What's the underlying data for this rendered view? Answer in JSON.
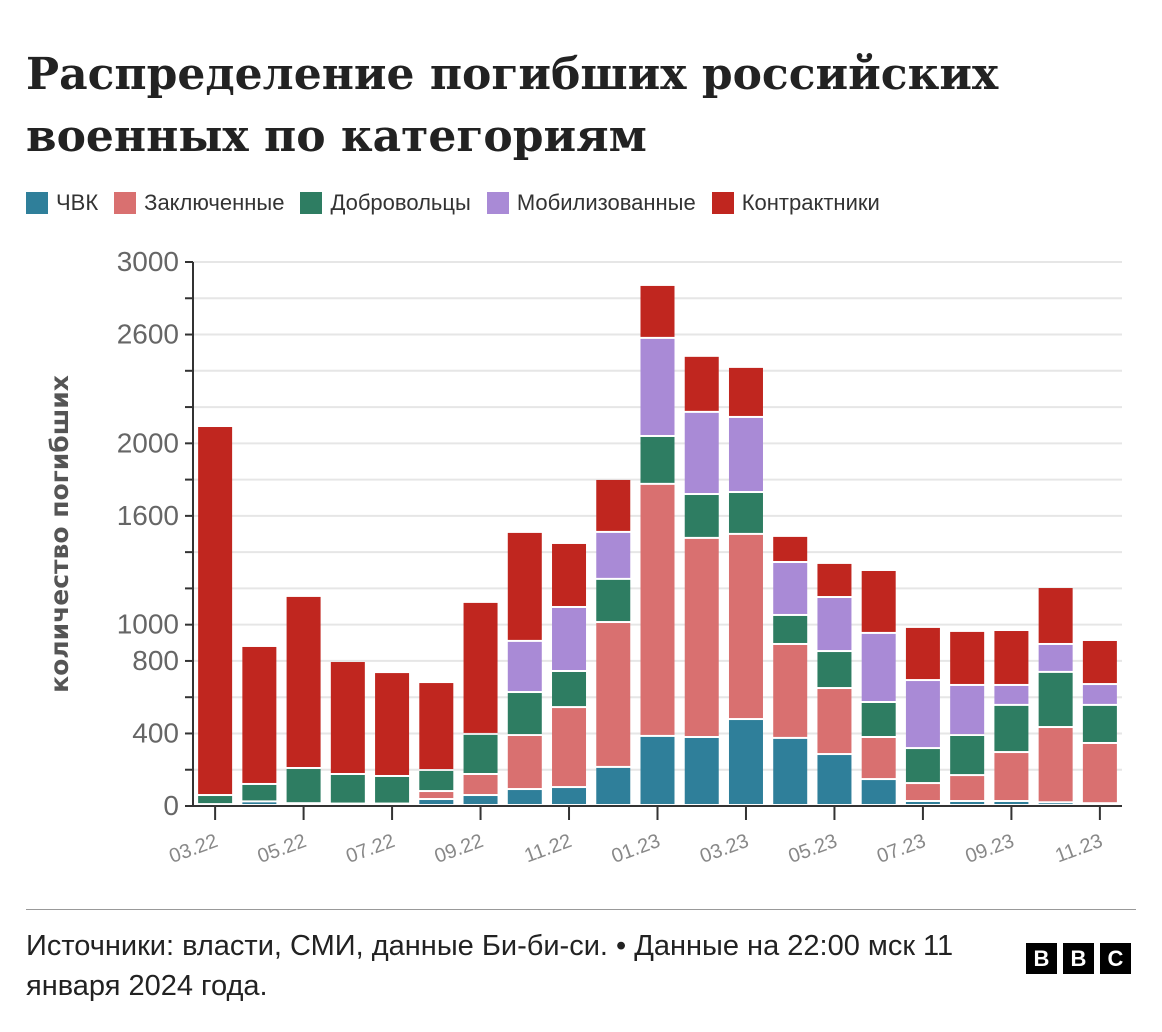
{
  "title": "Распределение погибших российских военных по категориям",
  "source": "Источники: власти, СМИ, данные Би-би-си. • Данные на 22:00 мск 11 января 2024 года.",
  "logo": [
    "B",
    "B",
    "C"
  ],
  "chart_data": {
    "type": "bar",
    "stacked": true,
    "ylabel": "количество погибших",
    "ylim": [
      0,
      3000
    ],
    "yticks": [
      0,
      400,
      800,
      1000,
      1600,
      2000,
      2600,
      3000
    ],
    "grid": true,
    "legend_position": "top-left",
    "categories": [
      "03.22",
      "04.22",
      "05.22",
      "06.22",
      "07.22",
      "08.22",
      "09.22",
      "10.22",
      "11.22",
      "12.22",
      "01.23",
      "02.23",
      "03.23",
      "04.23",
      "05.23",
      "06.23",
      "07.23",
      "08.23",
      "09.23",
      "10.23",
      "11.23"
    ],
    "xtick_labels": [
      "03.22",
      "05.22",
      "07.22",
      "09.22",
      "11.22",
      "01.23",
      "03.23",
      "05.23",
      "07.23",
      "09.23",
      "11.23"
    ],
    "series": [
      {
        "name": "ЧВК",
        "color": "#2f7f9a",
        "values": [
          5,
          20,
          10,
          8,
          8,
          33,
          55,
          88,
          99,
          210,
          381,
          375,
          474,
          370,
          281,
          143,
          22,
          22,
          22,
          15,
          10
        ]
      },
      {
        "name": "Заключенные",
        "color": "#d97070",
        "values": [
          0,
          0,
          0,
          0,
          0,
          44,
          116,
          298,
          441,
          799,
          1390,
          1098,
          1021,
          518,
          364,
          232,
          99,
          143,
          270,
          415,
          332
        ]
      },
      {
        "name": "Добровольцы",
        "color": "#2e7d62",
        "values": [
          50,
          96,
          194,
          163,
          152,
          116,
          221,
          237,
          199,
          238,
          264,
          242,
          231,
          160,
          204,
          193,
          193,
          221,
          260,
          304,
          210
        ]
      },
      {
        "name": "Мобилизованные",
        "color": "#a98ad6",
        "values": [
          0,
          0,
          0,
          0,
          0,
          0,
          0,
          282,
          353,
          259,
          541,
          453,
          414,
          292,
          298,
          381,
          375,
          276,
          110,
          154,
          115
        ]
      },
      {
        "name": "Контрактники",
        "color": "#c0261f",
        "values": [
          2035,
          761,
          949,
          623,
          573,
          485,
          728,
          601,
          353,
          292,
          292,
          309,
          276,
          144,
          188,
          347,
          293,
          298,
          303,
          314,
          243
        ]
      }
    ]
  }
}
